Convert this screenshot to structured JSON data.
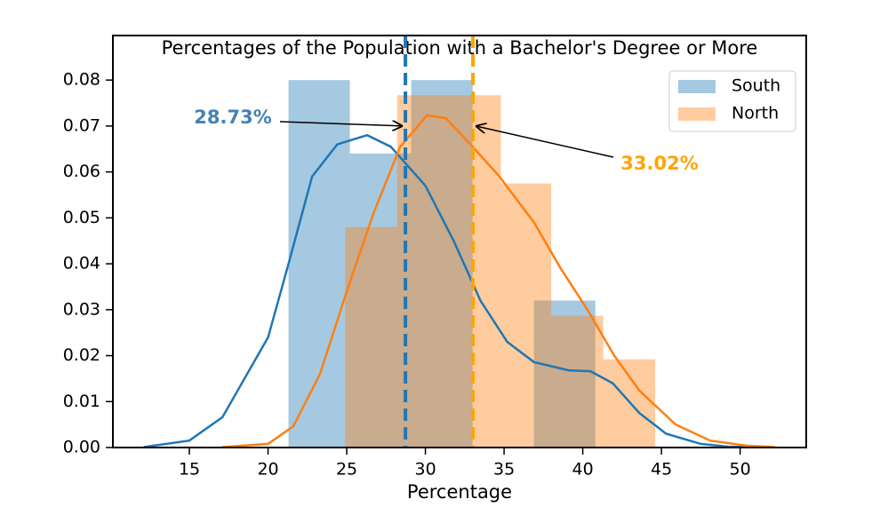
{
  "chart_data": {
    "type": "histogram",
    "title": "Percentages of the Population with a Bachelor's Degree or More",
    "x_label": "Percentage",
    "xlim": [
      10.14,
      54.2
    ],
    "ylim": [
      0,
      0.0897
    ],
    "xticks": [
      15,
      20,
      25,
      30,
      35,
      40,
      45,
      50
    ],
    "yticks": [
      {
        "value": 0,
        "label": "0.00"
      },
      {
        "value": 0.01,
        "label": "0.01"
      },
      {
        "value": 0.02,
        "label": "0.02"
      },
      {
        "value": 0.03,
        "label": "0.03"
      },
      {
        "value": 0.04,
        "label": "0.04"
      },
      {
        "value": 0.05,
        "label": "0.05"
      },
      {
        "value": 0.06,
        "label": "0.06"
      },
      {
        "value": 0.07,
        "label": "0.07"
      },
      {
        "value": 0.08,
        "label": "0.08"
      }
    ],
    "legend": "upper right",
    "series": [
      {
        "name": "South",
        "color": "#1f77b4",
        "bins": [
          21.3,
          25.2,
          29.1,
          33.0,
          36.9,
          40.8
        ],
        "values": [
          0.08,
          0.064,
          0.08,
          0,
          0.032
        ],
        "kde_x": [
          12.1,
          15,
          17.1,
          20,
          21.3,
          22.8,
          24.4,
          26.3,
          27.8,
          30,
          31.8,
          33.5,
          35.2,
          36.9,
          39.1,
          40.5,
          41.9,
          43.6,
          45.3,
          47.5,
          49.2,
          51
        ],
        "kde_y": [
          0.0001,
          0.0015,
          0.0066,
          0.024,
          0.04,
          0.059,
          0.066,
          0.068,
          0.0655,
          0.057,
          0.045,
          0.032,
          0.023,
          0.0186,
          0.0168,
          0.0166,
          0.014,
          0.0075,
          0.003,
          0.0008,
          0.0002,
          0.0001
        ],
        "mean": 28.73,
        "mean_label": "28.73%",
        "mean_label_color": "#4682b4",
        "annotation_y": 0.07
      },
      {
        "name": "North",
        "color": "#ff7f0e",
        "bins": [
          24.9,
          28.2,
          31.5,
          34.8,
          38.0,
          41.3,
          44.6
        ],
        "values": [
          0.048,
          0.0767,
          0.0767,
          0.0575,
          0.0287,
          0.0192
        ],
        "kde_x": [
          17.1,
          20,
          21.6,
          23.3,
          25,
          26.7,
          28.4,
          30.1,
          31.3,
          33,
          34.7,
          36.9,
          38.6,
          40.3,
          42,
          43.6,
          45.9,
          48.1,
          50.4,
          52.2
        ],
        "kde_y": [
          0.0001,
          0.0008,
          0.0046,
          0.016,
          0.034,
          0.051,
          0.0655,
          0.0723,
          0.0717,
          0.0655,
          0.059,
          0.049,
          0.039,
          0.03,
          0.02,
          0.0124,
          0.005,
          0.0015,
          0.0004,
          0.0001
        ],
        "mean": 33.02,
        "mean_label": "33.02%",
        "mean_label_color": "#ffa500",
        "mean_line_color": "#ffa500",
        "annotation_y": 0.07
      }
    ]
  }
}
